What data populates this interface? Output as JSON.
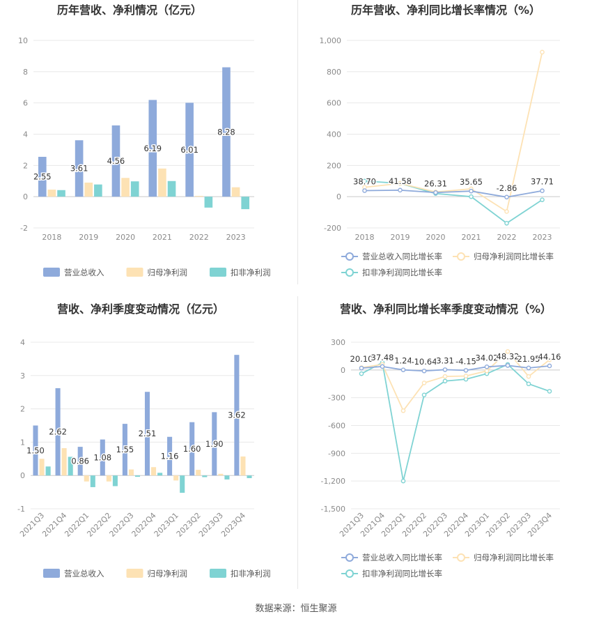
{
  "source_text": "数据来源：恒生聚源",
  "chart_data": [
    {
      "type": "bar",
      "title": "历年营收、净利情况（亿元）",
      "categories": [
        "2018",
        "2019",
        "2020",
        "2021",
        "2022",
        "2023"
      ],
      "ylim": [
        -2,
        10
      ],
      "yticks": [
        -2,
        0,
        2,
        4,
        6,
        8,
        10
      ],
      "series": [
        {
          "name": "营业总收入",
          "color": "#8eaadb",
          "values": [
            2.55,
            3.61,
            4.56,
            6.19,
            6.01,
            8.28
          ],
          "labels": [
            "2.55",
            "3.61",
            "4.56",
            "6.19",
            "6.01",
            "8.28"
          ]
        },
        {
          "name": "归母净利润",
          "color": "#fde2b4",
          "values": [
            0.45,
            0.9,
            1.2,
            1.8,
            0.05,
            0.6
          ]
        },
        {
          "name": "扣非净利润",
          "color": "#7fd3d3",
          "values": [
            0.42,
            0.78,
            0.98,
            1.0,
            -0.7,
            -0.8
          ]
        }
      ],
      "grid": true,
      "legend": "bottom"
    },
    {
      "type": "line",
      "title": "历年营收、净利同比增长率情况（%）",
      "categories": [
        "2018",
        "2019",
        "2020",
        "2021",
        "2022",
        "2023"
      ],
      "ylim": [
        -200,
        1000
      ],
      "yticks": [
        -200,
        0,
        200,
        400,
        600,
        800,
        1000
      ],
      "ytick_labels": [
        "-200",
        "0",
        "200",
        "400",
        "600",
        "800",
        "1,000"
      ],
      "series": [
        {
          "name": "营业总收入同比增长率",
          "color": "#8eaadb",
          "values": [
            38.7,
            41.58,
            26.31,
            35.65,
            -2.86,
            37.71
          ],
          "labels": [
            "38.70",
            "41.58",
            "26.31",
            "35.65",
            "-2.86",
            "37.71"
          ]
        },
        {
          "name": "归母净利润同比增长率",
          "color": "#fde2b4",
          "values": [
            60,
            85,
            30,
            50,
            -95,
            925
          ]
        },
        {
          "name": "扣非净利润同比增长率",
          "color": "#7fd3d3",
          "values": [
            100,
            85,
            20,
            0,
            -170,
            -20
          ]
        }
      ],
      "grid": true,
      "legend": "bottom"
    },
    {
      "type": "bar",
      "title": "营收、净利季度变动情况（亿元）",
      "categories": [
        "2021Q3",
        "2021Q4",
        "2022Q1",
        "2022Q2",
        "2022Q3",
        "2022Q4",
        "2023Q1",
        "2023Q2",
        "2023Q3",
        "2023Q4"
      ],
      "ylim": [
        -1,
        4
      ],
      "yticks": [
        -1,
        0,
        1,
        2,
        3,
        4
      ],
      "series": [
        {
          "name": "营业总收入",
          "color": "#8eaadb",
          "values": [
            1.5,
            2.62,
            0.86,
            1.08,
            1.55,
            2.51,
            1.16,
            1.6,
            1.9,
            3.62
          ],
          "labels": [
            "1.50",
            "2.62",
            "0.86",
            "1.08",
            "1.55",
            "2.51",
            "1.16",
            "1.60",
            "1.90",
            "3.62"
          ]
        },
        {
          "name": "归母净利润",
          "color": "#fde2b4",
          "values": [
            0.5,
            0.82,
            -0.18,
            -0.18,
            0.18,
            0.25,
            -0.15,
            0.17,
            0.05,
            0.57
          ]
        },
        {
          "name": "扣非净利润",
          "color": "#7fd3d3",
          "values": [
            0.27,
            0.56,
            -0.35,
            -0.32,
            -0.04,
            0.08,
            -0.52,
            -0.05,
            -0.12,
            -0.08
          ]
        }
      ],
      "grid": true,
      "legend": "bottom"
    },
    {
      "type": "line",
      "title": "营收、净利同比增长率季度变动情况（%）",
      "categories": [
        "2021Q3",
        "2021Q4",
        "2022Q1",
        "2022Q2",
        "2022Q3",
        "2022Q4",
        "2023Q1",
        "2023Q2",
        "2023Q3",
        "2023Q4"
      ],
      "ylim": [
        -1500,
        300
      ],
      "yticks": [
        -1500,
        -1200,
        -900,
        -600,
        -300,
        0,
        300
      ],
      "ytick_labels": [
        "-1,500",
        "-1,200",
        "-900",
        "-600",
        "-300",
        "0",
        "300"
      ],
      "series": [
        {
          "name": "营业总收入同比增长率",
          "color": "#8eaadb",
          "values": [
            20.1,
            37.48,
            1.24,
            -10.64,
            3.31,
            -4.15,
            34.02,
            48.32,
            21.95,
            44.16
          ],
          "labels": [
            "20.10",
            "37.48",
            "1.24",
            "-10.64",
            "3.31",
            "-4.15",
            "34.02",
            "48.32",
            "21.95",
            "44.16"
          ]
        },
        {
          "name": "归母净利润同比增长率",
          "color": "#fde2b4",
          "values": [
            25,
            60,
            -440,
            -140,
            -70,
            -65,
            -10,
            200,
            -70,
            110
          ]
        },
        {
          "name": "扣非净利润同比增长率",
          "color": "#7fd3d3",
          "values": [
            -40,
            80,
            -1200,
            -270,
            -120,
            -100,
            -40,
            60,
            -150,
            -230
          ]
        }
      ],
      "grid": true,
      "legend": "bottom"
    }
  ]
}
